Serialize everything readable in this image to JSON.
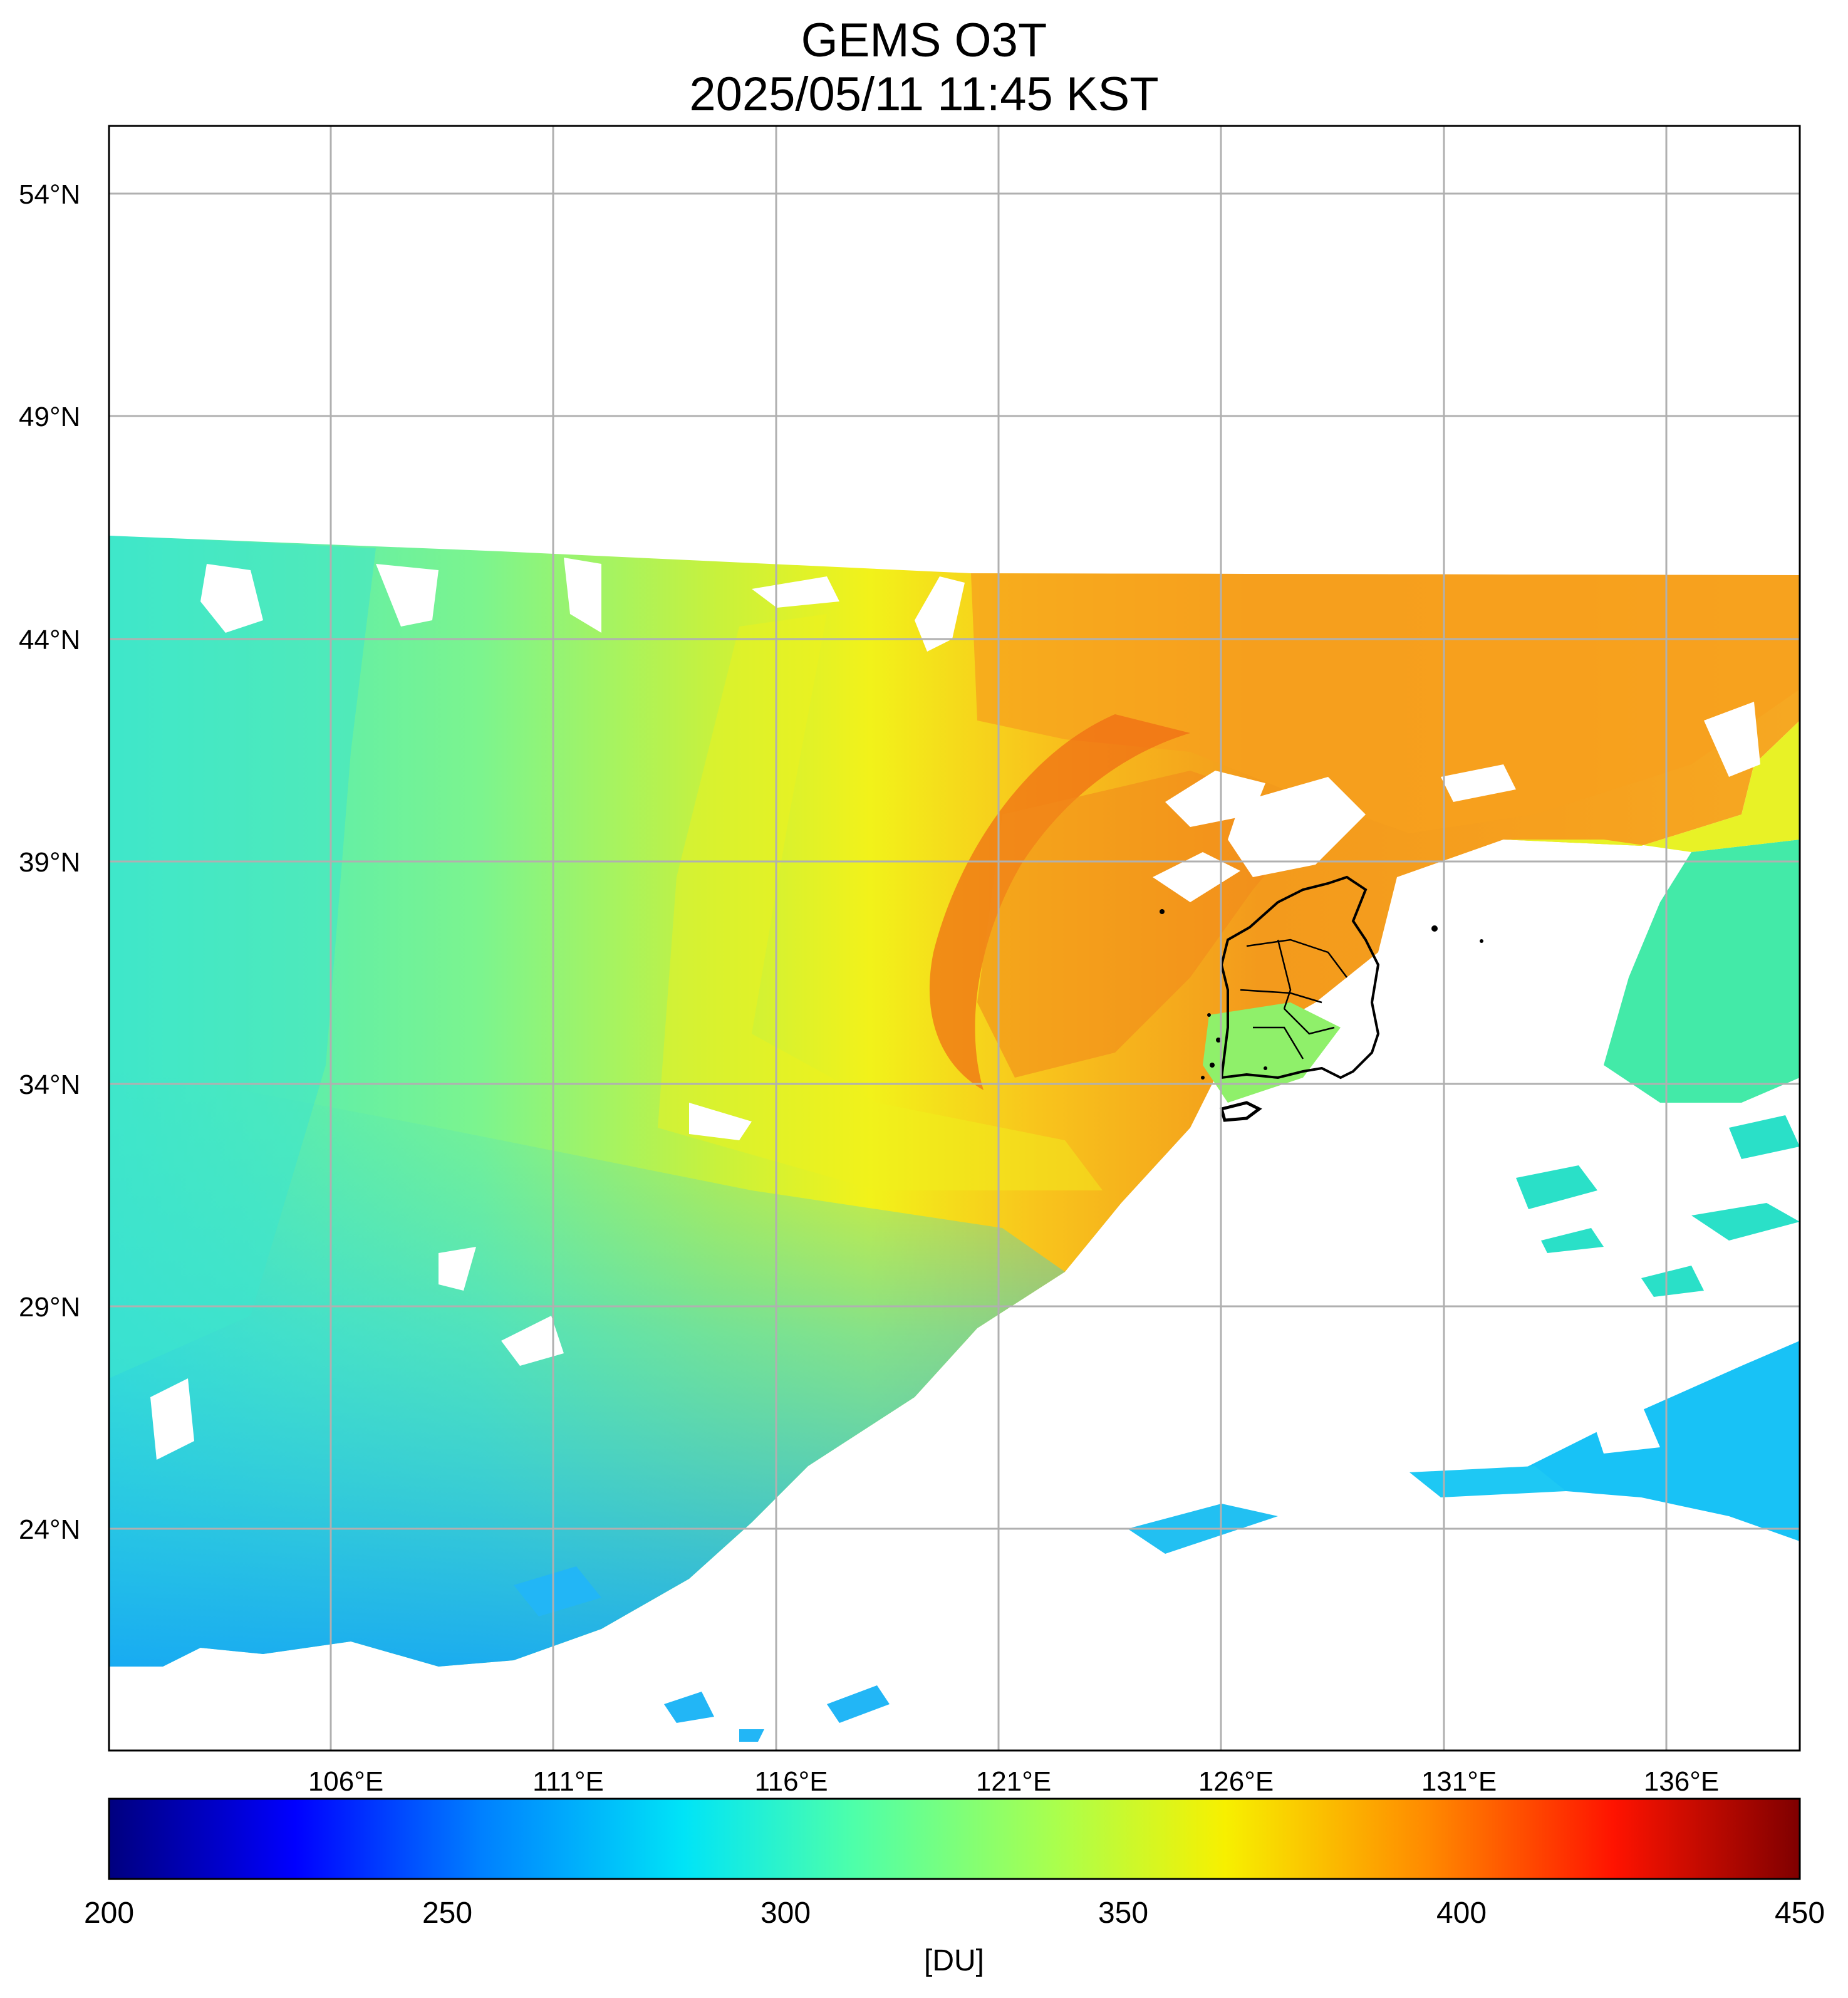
{
  "title": "GEMS O3T",
  "subtitle": "2025/05/11 11:45 KST",
  "map": {
    "lat_ticks": [
      "54°N",
      "49°N",
      "44°N",
      "39°N",
      "34°N",
      "29°N",
      "24°N"
    ],
    "lon_ticks": [
      "106°E",
      "111°E",
      "116°E",
      "121°E",
      "126°E",
      "131°E",
      "136°E"
    ],
    "lat_range": [
      19.5,
      55.5
    ],
    "lon_range": [
      101,
      139
    ],
    "grid": true
  },
  "colorbar": {
    "unit": "[DU]",
    "ticks": [
      "200",
      "250",
      "300",
      "350",
      "400",
      "450"
    ],
    "range": [
      200,
      450
    ],
    "colors": [
      "#00007f",
      "#0000ff",
      "#0080ff",
      "#00e4f7",
      "#4dffaa",
      "#aaff4d",
      "#f7f000",
      "#ff8a00",
      "#ff1300",
      "#7f0000"
    ]
  },
  "field_colors": {
    "west": "#3fe6c8",
    "southwest": "#22b8f5",
    "central": "#c4f040",
    "yellow": "#eef41e",
    "orange": "#f5a21a",
    "red_band": "#f07016",
    "north_east": "#f7a020",
    "japan_sea": "#2fe8b0",
    "pacific": "#14c4f8"
  }
}
